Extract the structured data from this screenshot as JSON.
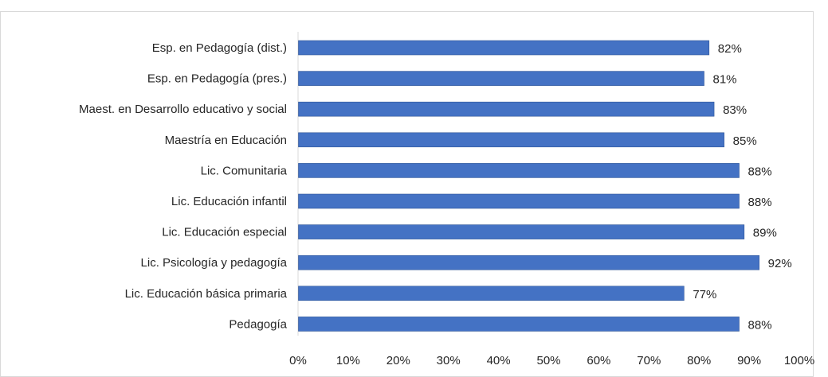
{
  "chart_data": {
    "type": "bar",
    "orientation": "horizontal",
    "categories": [
      "Esp. en Pedagogía (dist.)",
      "Esp. en Pedagogía (pres.)",
      "Maest. en Desarrollo educativo y social",
      "Maestría en Educación",
      "Lic. Comunitaria",
      "Lic. Educación infantil",
      "Lic. Educación especial",
      "Lic. Psicología y pedagogía",
      "Lic. Educación básica primaria",
      "Pedagogía"
    ],
    "values": [
      82,
      81,
      83,
      85,
      88,
      88,
      89,
      92,
      77,
      88
    ],
    "data_labels": [
      "82%",
      "81%",
      "83%",
      "85%",
      "88%",
      "88%",
      "89%",
      "92%",
      "77%",
      "88%"
    ],
    "x_ticks": [
      "0%",
      "10%",
      "20%",
      "30%",
      "40%",
      "50%",
      "60%",
      "70%",
      "80%",
      "90%",
      "100%"
    ],
    "xlim": [
      0,
      100
    ],
    "grid": false,
    "legend": "none",
    "bar_color": "#4472c4",
    "bar_edge_color": "#2f5597",
    "axis_color": "#d9d9d9",
    "text_color": "#262626"
  }
}
